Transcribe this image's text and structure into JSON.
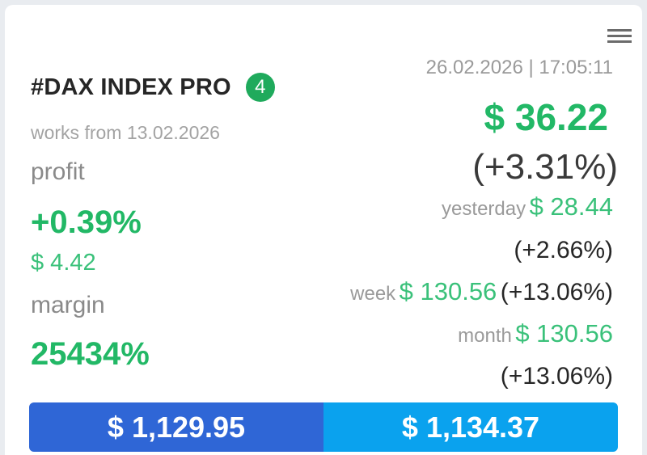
{
  "header": {
    "title": "#DAX INDEX PRO",
    "badge_count": "4",
    "works_from": "works from 13.02.2026",
    "datetime": "26.02.2026 | 17:05:11",
    "menu_icon": "hamburger-menu-icon"
  },
  "left": {
    "profit_label": "profit",
    "profit_percent": "+0.39%",
    "profit_usd": "$ 4.42",
    "margin_label": "margin",
    "margin_value": "25434%"
  },
  "right": {
    "price": "$ 36.22",
    "price_change": "(+3.31%)",
    "yesterday_label": "yesterday",
    "yesterday_value": "$ 28.44",
    "yesterday_change": "(+2.66%)",
    "week_label": "week",
    "week_value": "$ 130.56",
    "week_change": "(+13.06%)",
    "month_label": "month",
    "month_value": "$ 130.56",
    "month_change": "(+13.06%)"
  },
  "footer": {
    "bid": "$ 1,129.95",
    "ask": "$ 1,134.37"
  },
  "colors": {
    "green": "#22b866",
    "bid_blue": "#2f66d6",
    "ask_blue": "#0aa2ee",
    "badge_green": "#1faa5c"
  }
}
